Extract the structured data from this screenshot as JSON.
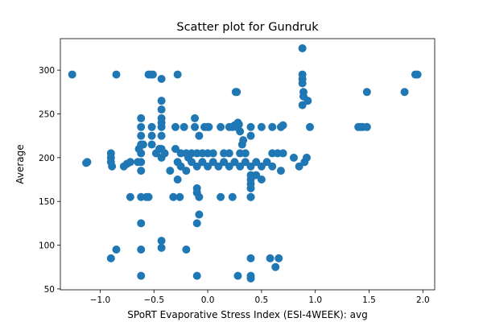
{
  "chart_data": {
    "type": "scatter",
    "title": "Scatter plot for Gundruk",
    "xlabel": "SPoRT Evaporative Stress Index (ESI-4WEEK): avg",
    "ylabel": "Average",
    "xlim": [
      -1.37,
      2.11
    ],
    "ylim": [
      49,
      336
    ],
    "xticks": [
      -1.0,
      -0.5,
      0.0,
      0.5,
      1.0,
      1.5,
      2.0
    ],
    "xtick_labels": [
      "−1.0",
      "−0.5",
      "0.0",
      "0.5",
      "1.0",
      "1.5",
      "2.0"
    ],
    "yticks": [
      50,
      100,
      150,
      200,
      250,
      300
    ],
    "ytick_labels": [
      "50",
      "100",
      "150",
      "200",
      "250",
      "300"
    ],
    "grid": false,
    "legend": "none",
    "series": [
      {
        "color": "#1f77b4",
        "points": [
          [
            -1.26,
            295
          ],
          [
            -0.85,
            295
          ],
          [
            -0.55,
            295
          ],
          [
            -0.53,
            295
          ],
          [
            -0.51,
            295
          ],
          [
            -0.28,
            295
          ],
          [
            -0.43,
            290
          ],
          [
            0.88,
            325
          ],
          [
            0.88,
            295
          ],
          [
            0.88,
            290
          ],
          [
            0.88,
            285
          ],
          [
            0.89,
            275
          ],
          [
            0.89,
            270
          ],
          [
            0.88,
            260
          ],
          [
            0.93,
            265
          ],
          [
            1.93,
            295
          ],
          [
            1.95,
            295
          ],
          [
            1.83,
            275
          ],
          [
            1.48,
            275
          ],
          [
            0.26,
            275
          ],
          [
            0.27,
            275
          ],
          [
            -0.62,
            245
          ],
          [
            -0.62,
            235
          ],
          [
            -0.62,
            225
          ],
          [
            -0.62,
            215
          ],
          [
            -0.62,
            205
          ],
          [
            -0.62,
            195
          ],
          [
            -0.62,
            185
          ],
          [
            -0.52,
            235
          ],
          [
            -0.52,
            225
          ],
          [
            -0.52,
            215
          ],
          [
            -0.43,
            265
          ],
          [
            -0.43,
            255
          ],
          [
            -0.43,
            245
          ],
          [
            -0.43,
            240
          ],
          [
            -0.43,
            235
          ],
          [
            -0.43,
            225
          ],
          [
            -0.43,
            210
          ],
          [
            -0.43,
            200
          ],
          [
            -0.3,
            235
          ],
          [
            -0.22,
            235
          ],
          [
            -0.12,
            235
          ],
          [
            -0.12,
            245
          ],
          [
            -0.08,
            225
          ],
          [
            -0.03,
            235
          ],
          [
            0.0,
            235
          ],
          [
            0.01,
            235
          ],
          [
            0.12,
            235
          ],
          [
            0.2,
            235
          ],
          [
            0.23,
            235
          ],
          [
            0.25,
            237
          ],
          [
            0.27,
            235
          ],
          [
            0.28,
            240
          ],
          [
            0.29,
            238
          ],
          [
            0.3,
            230
          ],
          [
            0.32,
            215
          ],
          [
            0.33,
            220
          ],
          [
            0.4,
            235
          ],
          [
            0.5,
            235
          ],
          [
            0.6,
            235
          ],
          [
            0.68,
            235
          ],
          [
            0.7,
            237
          ],
          [
            0.95,
            235
          ],
          [
            1.4,
            235
          ],
          [
            1.42,
            235
          ],
          [
            1.44,
            235
          ],
          [
            1.48,
            235
          ],
          [
            0.4,
            225
          ],
          [
            -0.9,
            205
          ],
          [
            -0.9,
            200
          ],
          [
            -0.9,
            195
          ],
          [
            -0.89,
            190
          ],
          [
            -0.72,
            195
          ],
          [
            -0.64,
            210
          ],
          [
            -0.6,
            215
          ],
          [
            -1.12,
            195
          ],
          [
            -1.13,
            194
          ],
          [
            -0.78,
            190
          ],
          [
            -0.75,
            193
          ],
          [
            -0.65,
            195
          ],
          [
            -0.48,
            205
          ],
          [
            -0.45,
            210
          ],
          [
            -0.4,
            205
          ],
          [
            -0.3,
            210
          ],
          [
            -0.25,
            205
          ],
          [
            -0.2,
            205
          ],
          [
            -0.18,
            200
          ],
          [
            -0.15,
            205
          ],
          [
            -0.1,
            205
          ],
          [
            -0.05,
            205
          ],
          [
            0.0,
            205
          ],
          [
            0.05,
            205
          ],
          [
            0.15,
            205
          ],
          [
            0.2,
            205
          ],
          [
            0.3,
            205
          ],
          [
            0.35,
            205
          ],
          [
            0.6,
            205
          ],
          [
            0.65,
            205
          ],
          [
            0.7,
            205
          ],
          [
            -0.35,
            185
          ],
          [
            -0.28,
            195
          ],
          [
            -0.25,
            190
          ],
          [
            -0.2,
            185
          ],
          [
            -0.15,
            195
          ],
          [
            -0.1,
            190
          ],
          [
            -0.05,
            195
          ],
          [
            0.0,
            190
          ],
          [
            0.05,
            195
          ],
          [
            0.1,
            190
          ],
          [
            0.15,
            195
          ],
          [
            0.2,
            190
          ],
          [
            0.25,
            195
          ],
          [
            0.3,
            190
          ],
          [
            0.35,
            195
          ],
          [
            0.4,
            190
          ],
          [
            0.45,
            195
          ],
          [
            0.5,
            190
          ],
          [
            0.55,
            195
          ],
          [
            0.6,
            190
          ],
          [
            0.68,
            185
          ],
          [
            0.8,
            200
          ],
          [
            0.85,
            190
          ],
          [
            0.9,
            195
          ],
          [
            0.92,
            200
          ],
          [
            0.4,
            180
          ],
          [
            0.4,
            175
          ],
          [
            0.4,
            170
          ],
          [
            0.4,
            165
          ],
          [
            0.45,
            180
          ],
          [
            0.5,
            175
          ],
          [
            0.4,
            155
          ],
          [
            -0.28,
            175
          ],
          [
            -0.72,
            155
          ],
          [
            -0.62,
            155
          ],
          [
            -0.57,
            155
          ],
          [
            -0.55,
            155
          ],
          [
            -0.32,
            155
          ],
          [
            -0.26,
            155
          ],
          [
            -0.08,
            155
          ],
          [
            -0.1,
            165
          ],
          [
            -0.1,
            160
          ],
          [
            0.12,
            155
          ],
          [
            0.23,
            155
          ],
          [
            0.4,
            155
          ],
          [
            -0.08,
            135
          ],
          [
            -0.1,
            125
          ],
          [
            -0.62,
            125
          ],
          [
            -0.43,
            105
          ],
          [
            -0.43,
            97
          ],
          [
            -0.62,
            95
          ],
          [
            -0.85,
            95
          ],
          [
            -0.2,
            95
          ],
          [
            -0.9,
            85
          ],
          [
            0.4,
            85
          ],
          [
            0.58,
            85
          ],
          [
            0.66,
            85
          ],
          [
            0.63,
            75
          ],
          [
            -0.62,
            65
          ],
          [
            -0.1,
            65
          ],
          [
            0.28,
            65
          ],
          [
            0.4,
            65
          ],
          [
            0.4,
            62
          ]
        ]
      }
    ]
  }
}
